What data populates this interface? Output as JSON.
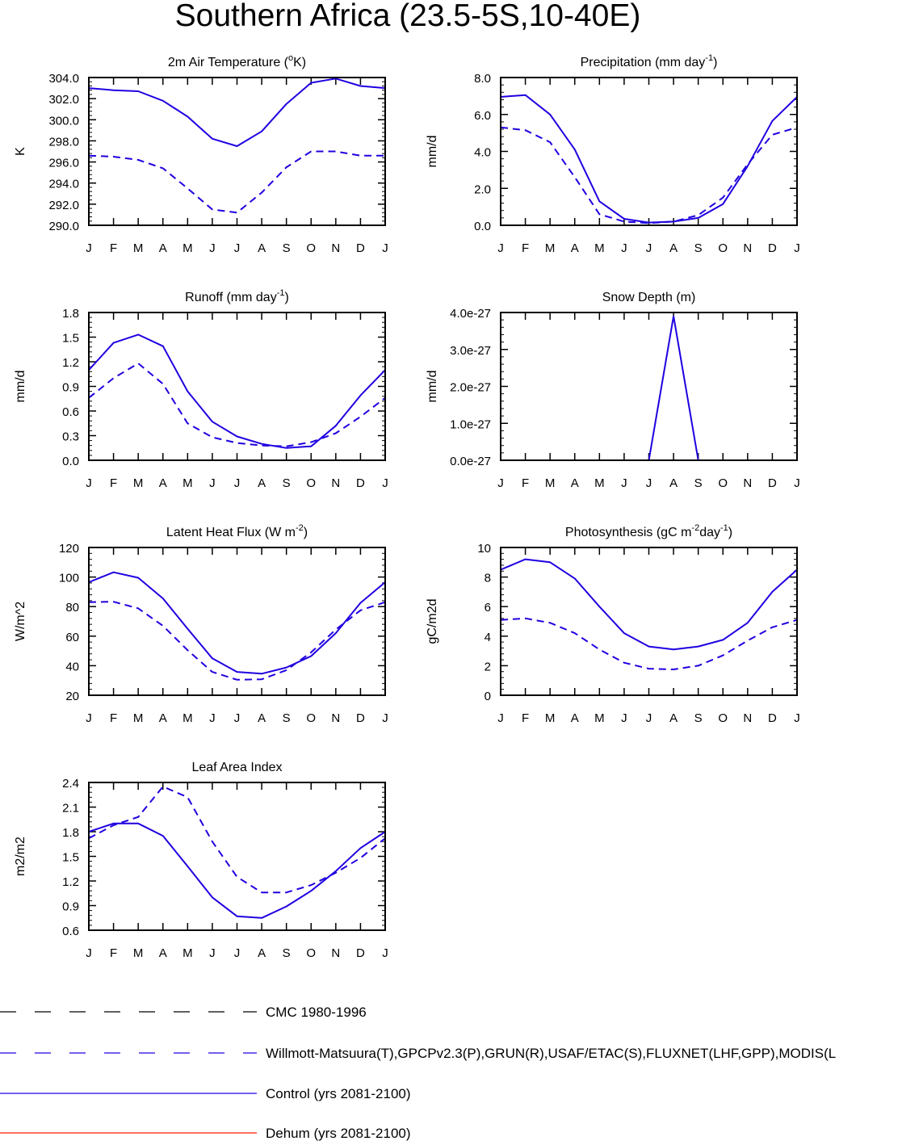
{
  "page": {
    "title": "Southern Africa (23.5-5S,10-40E)"
  },
  "months": [
    "J",
    "F",
    "M",
    "A",
    "M",
    "J",
    "J",
    "A",
    "S",
    "O",
    "N",
    "D",
    "J"
  ],
  "colors": {
    "model": "#1f00e0",
    "obs": "#1f00e0",
    "cmc": "#000000",
    "dehum": "#ff1a00"
  },
  "legend": {
    "items": [
      {
        "label": "CMC 1980-1996",
        "color": "#000000",
        "dash": true
      },
      {
        "label": "Willmott-Matsuura(T),GPCPv2.3(P),GRUN(R),USAF/ETAC(S),FLUXNET(LHF,GPP),MODIS(L",
        "color": "#1f00e0",
        "dash": true
      },
      {
        "label": "Control (yrs 2081-2100)",
        "color": "#1f00e0",
        "dash": false
      },
      {
        "label": "Dehum (yrs 2081-2100)",
        "color": "#ff1a00",
        "dash": false
      }
    ]
  },
  "chart_data": [
    {
      "type": "line",
      "title": "2m Air Temperature (°K)",
      "ylabel": "K",
      "ylim": [
        290,
        304
      ],
      "yticks": [
        290,
        292,
        294,
        296,
        298,
        300,
        302,
        304
      ],
      "yticklabels": [
        "290.0",
        "292.0",
        "294.0",
        "296.0",
        "298.0",
        "300.0",
        "302.0",
        "304.0"
      ],
      "series": [
        {
          "name": "Control (yrs 2081-2100)",
          "style": "solid",
          "values": [
            303.0,
            302.8,
            302.7,
            301.8,
            300.3,
            298.2,
            297.5,
            298.9,
            301.5,
            303.5,
            303.9,
            303.2,
            303.0
          ]
        },
        {
          "name": "Willmott-Matsuura(T),GPCPv2.3(P),GRUN(R),USAF/ETAC(S),FLUXNET(LHF,GPP),MODIS(L",
          "style": "dashed",
          "values": [
            296.6,
            296.5,
            296.2,
            295.4,
            293.5,
            291.5,
            291.2,
            293.1,
            295.5,
            297.0,
            297.0,
            296.6,
            296.6
          ]
        }
      ]
    },
    {
      "type": "line",
      "title": "Precipitation (mm day-1)",
      "ylabel": "mm/d",
      "ylim": [
        0,
        8
      ],
      "yticks": [
        0,
        2,
        4,
        6,
        8
      ],
      "yticklabels": [
        "0.0",
        "2.0",
        "4.0",
        "6.0",
        "8.0"
      ],
      "series": [
        {
          "name": "Control (yrs 2081-2100)",
          "style": "solid",
          "values": [
            6.95,
            7.05,
            6.0,
            4.1,
            1.3,
            0.35,
            0.15,
            0.2,
            0.4,
            1.15,
            3.2,
            5.65,
            6.95
          ]
        },
        {
          "name": "Willmott-Matsuura(T),GPCPv2.3(P),GRUN(R),USAF/ETAC(S),FLUXNET(LHF,GPP),MODIS(L",
          "style": "dashed",
          "values": [
            5.3,
            5.15,
            4.5,
            2.6,
            0.6,
            0.2,
            0.12,
            0.2,
            0.55,
            1.5,
            3.3,
            4.9,
            5.3
          ]
        }
      ]
    },
    {
      "type": "line",
      "title": "Runoff (mm day-1)",
      "ylabel": "mm/d",
      "ylim": [
        0,
        1.8
      ],
      "yticks": [
        0,
        0.3,
        0.6,
        0.9,
        1.2,
        1.5,
        1.8
      ],
      "yticklabels": [
        "0.0",
        "0.3",
        "0.6",
        "0.9",
        "1.2",
        "1.5",
        "1.8"
      ],
      "series": [
        {
          "name": "Control (yrs 2081-2100)",
          "style": "solid",
          "values": [
            1.1,
            1.43,
            1.53,
            1.39,
            0.84,
            0.47,
            0.29,
            0.2,
            0.15,
            0.17,
            0.42,
            0.79,
            1.1
          ]
        },
        {
          "name": "Willmott-Matsuura(T),GPCPv2.3(P),GRUN(R),USAF/ETAC(S),FLUXNET(LHF,GPP),MODIS(L",
          "style": "dashed",
          "values": [
            0.76,
            1.0,
            1.18,
            0.93,
            0.45,
            0.28,
            0.21,
            0.18,
            0.17,
            0.22,
            0.33,
            0.53,
            0.76
          ]
        }
      ]
    },
    {
      "type": "line",
      "title": "Snow Depth (m)",
      "ylabel": "mm/d",
      "ylim": [
        0,
        4
      ],
      "yticks": [
        0,
        1,
        2,
        3,
        4
      ],
      "yticklabels": [
        "0.0e-27",
        "1.0e-27",
        "2.0e-27",
        "3.0e-27",
        "4.0e-27"
      ],
      "series": [
        {
          "name": "Control (yrs 2081-2100)",
          "style": "solid",
          "values": [
            0,
            0,
            0,
            0,
            0,
            0,
            0,
            3.9,
            0,
            0,
            0,
            0,
            0
          ]
        },
        {
          "name": "Willmott-Matsuura(T),GPCPv2.3(P),GRUN(R),USAF/ETAC(S),FLUXNET(LHF,GPP),MODIS(L",
          "style": "dashed",
          "values": [
            0,
            0,
            0,
            0,
            0,
            0,
            0,
            0,
            0,
            0,
            0,
            0,
            0
          ]
        }
      ]
    },
    {
      "type": "line",
      "title": "Latent Heat Flux (W m-2)",
      "ylabel": "W/m^2",
      "ylim": [
        20,
        120
      ],
      "yticks": [
        20,
        40,
        60,
        80,
        100,
        120
      ],
      "yticklabels": [
        "20",
        "40",
        "60",
        "80",
        "100",
        "120"
      ],
      "series": [
        {
          "name": "Control (yrs 2081-2100)",
          "style": "solid",
          "values": [
            96.5,
            103.2,
            99.5,
            85.5,
            65.0,
            45.0,
            35.8,
            34.6,
            38.8,
            46.5,
            62.0,
            82.5,
            96.5
          ]
        },
        {
          "name": "Willmott-Matsuura(T),GPCPv2.3(P),GRUN(R),USAF/ETAC(S),FLUXNET(LHF,GPP),MODIS(L",
          "style": "dashed",
          "values": [
            83.0,
            83.3,
            78.8,
            67.0,
            50.5,
            35.8,
            30.5,
            30.8,
            37.0,
            49.0,
            64.5,
            77.5,
            83.0
          ]
        }
      ]
    },
    {
      "type": "line",
      "title": "Photosynthesis (gC m-2day-1)",
      "ylabel": "gC/m2d",
      "ylim": [
        0,
        10
      ],
      "yticks": [
        0,
        2,
        4,
        6,
        8,
        10
      ],
      "yticklabels": [
        "0",
        "2",
        "4",
        "6",
        "8",
        "10"
      ],
      "series": [
        {
          "name": "Control (yrs 2081-2100)",
          "style": "solid",
          "values": [
            8.5,
            9.2,
            9.0,
            7.9,
            6.0,
            4.2,
            3.3,
            3.1,
            3.3,
            3.75,
            4.9,
            7.0,
            8.5
          ]
        },
        {
          "name": "Willmott-Matsuura(T),GPCPv2.3(P),GRUN(R),USAF/ETAC(S),FLUXNET(LHF,GPP),MODIS(L",
          "style": "dashed",
          "values": [
            5.1,
            5.2,
            4.9,
            4.2,
            3.1,
            2.2,
            1.8,
            1.75,
            2.0,
            2.7,
            3.7,
            4.6,
            5.1
          ]
        }
      ]
    },
    {
      "type": "line",
      "title": "Leaf Area Index",
      "ylabel": "m2/m2",
      "ylim": [
        0.6,
        2.4
      ],
      "yticks": [
        0.6,
        0.9,
        1.2,
        1.5,
        1.8,
        2.1,
        2.4
      ],
      "yticklabels": [
        "0.6",
        "0.9",
        "1.2",
        "1.5",
        "1.8",
        "2.1",
        "2.4"
      ],
      "series": [
        {
          "name": "Control (yrs 2081-2100)",
          "style": "solid",
          "values": [
            1.8,
            1.9,
            1.9,
            1.75,
            1.38,
            1.0,
            0.77,
            0.75,
            0.89,
            1.08,
            1.32,
            1.6,
            1.8
          ]
        },
        {
          "name": "Willmott-Matsuura(T),GPCPv2.3(P),GRUN(R),USAF/ETAC(S),FLUXNET(LHF,GPP),MODIS(L",
          "style": "dashed",
          "values": [
            1.72,
            1.88,
            1.98,
            2.35,
            2.22,
            1.68,
            1.25,
            1.06,
            1.06,
            1.15,
            1.3,
            1.48,
            1.72
          ]
        }
      ]
    }
  ]
}
